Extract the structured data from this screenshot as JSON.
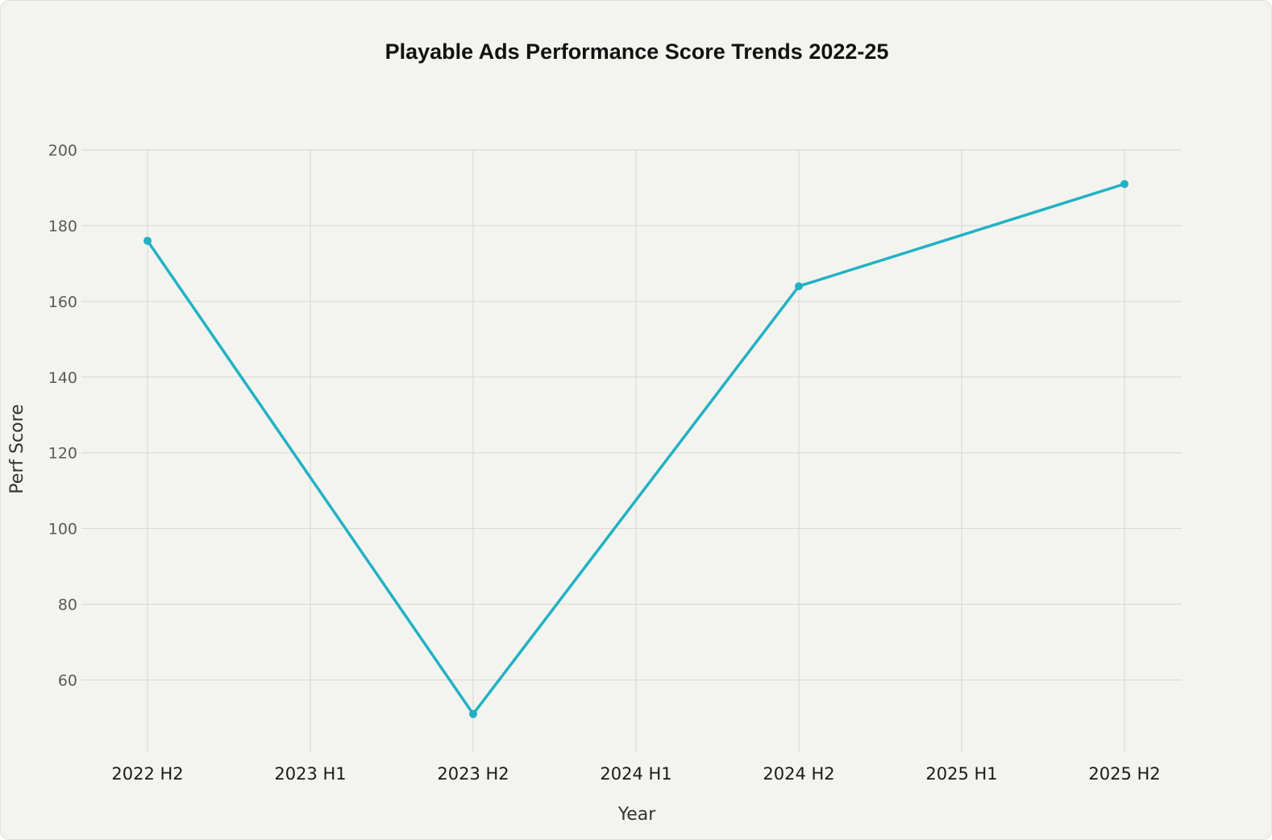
{
  "chart_data": {
    "type": "line",
    "title": "Playable Ads Performance Score Trends 2022-25",
    "xlabel": "Year",
    "ylabel": "Perf Score",
    "categories": [
      "2022 H2",
      "2023 H1",
      "2023 H2",
      "2024 H1",
      "2024 H2",
      "2025 H1",
      "2025 H2"
    ],
    "series": [
      {
        "points": [
          {
            "x": "2022 H2",
            "y": 176
          },
          {
            "x": "2023 H2",
            "y": 51
          },
          {
            "x": "2024 H2",
            "y": 164
          },
          {
            "x": "2025 H2",
            "y": 191
          }
        ]
      }
    ],
    "yticks": [
      60,
      80,
      100,
      120,
      140,
      160,
      180,
      200
    ],
    "ylim": [
      42,
      200
    ],
    "grid": true,
    "line_color": "#22b1c4",
    "legend": "none"
  }
}
